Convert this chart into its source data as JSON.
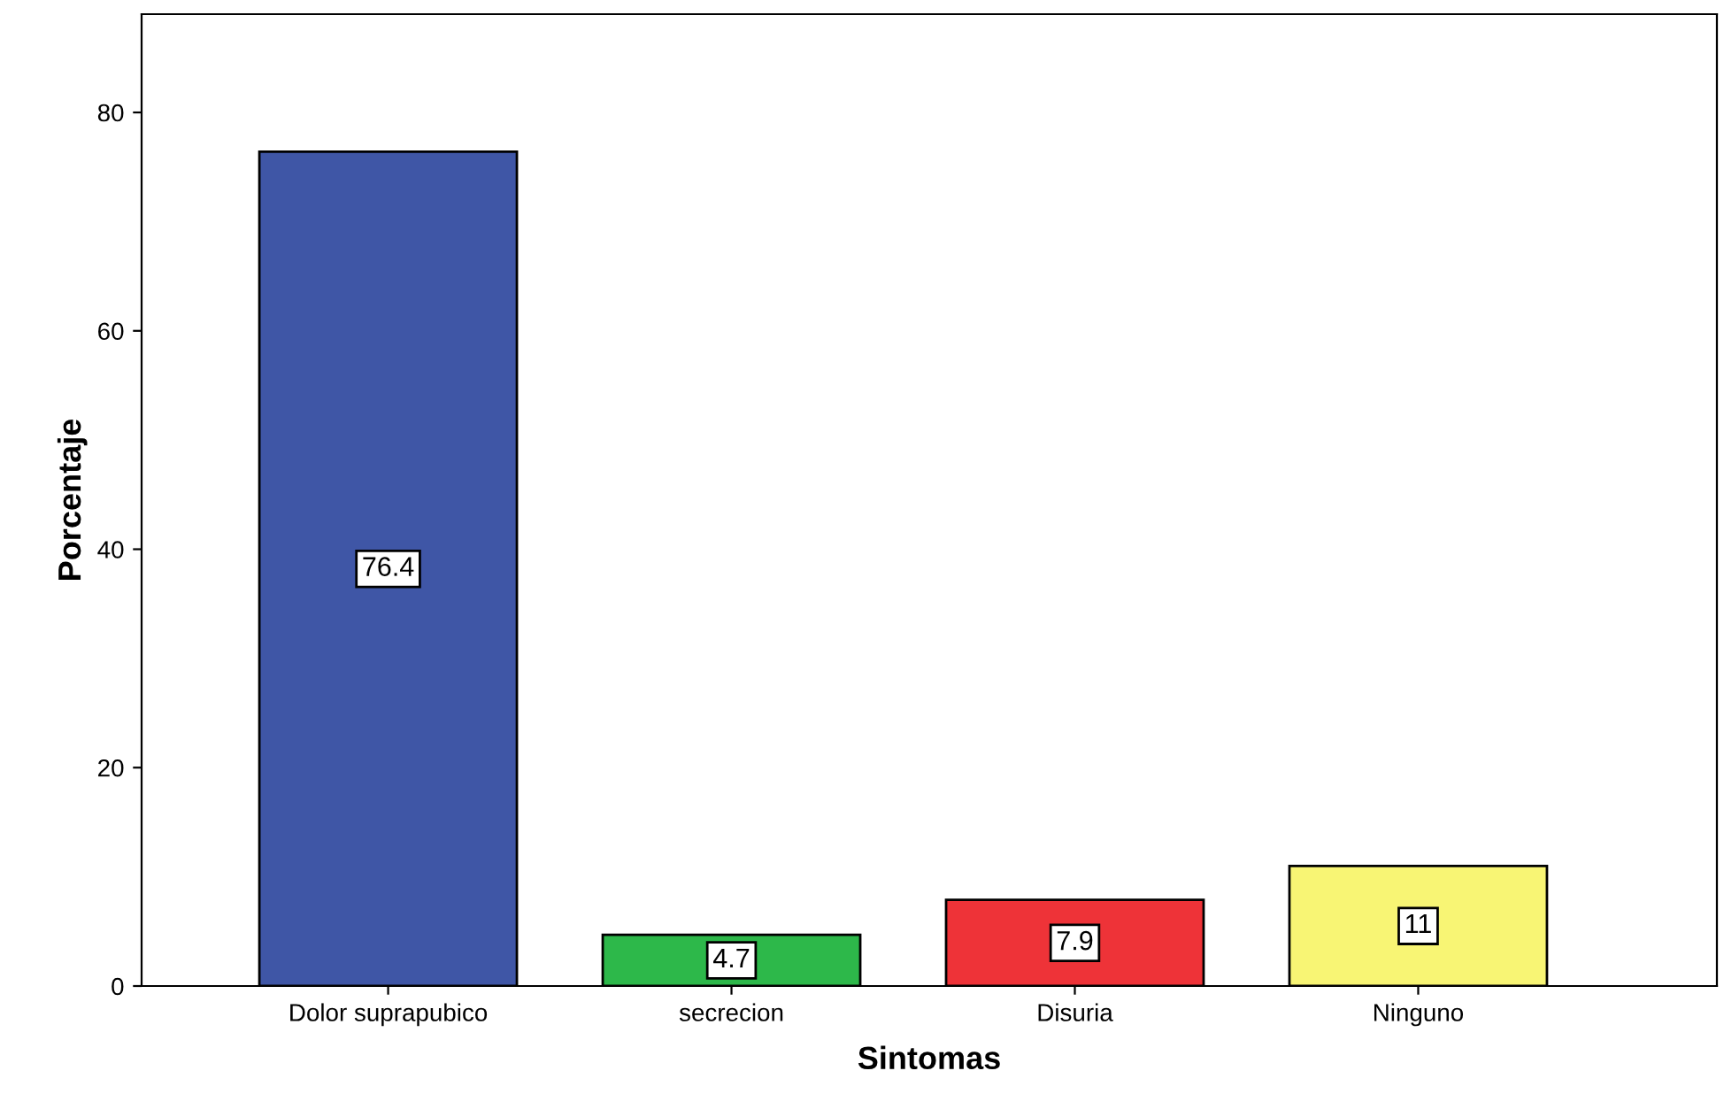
{
  "chart_data": {
    "type": "bar",
    "xlabel": "Sintomas",
    "ylabel": "Porcentaje",
    "categories": [
      "Dolor suprapubico",
      "secrecion",
      "Disuria",
      "Ninguno"
    ],
    "values": [
      76.4,
      4.7,
      7.9,
      11
    ],
    "colors": [
      "#3f56a6",
      "#2db84a",
      "#ee3338",
      "#f8f574"
    ],
    "ylim": [
      0,
      89
    ],
    "yticks": [
      0,
      20,
      40,
      60,
      80
    ],
    "grid": false,
    "data_labels": true
  }
}
